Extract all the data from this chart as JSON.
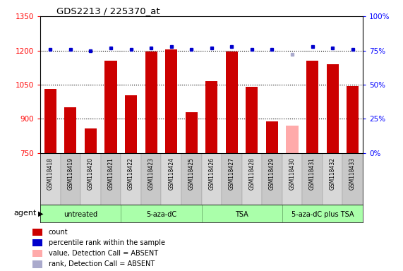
{
  "title": "GDS2213 / 225370_at",
  "samples": [
    "GSM118418",
    "GSM118419",
    "GSM118420",
    "GSM118421",
    "GSM118422",
    "GSM118423",
    "GSM118424",
    "GSM118425",
    "GSM118426",
    "GSM118427",
    "GSM118428",
    "GSM118429",
    "GSM118430",
    "GSM118431",
    "GSM118432",
    "GSM118433"
  ],
  "counts": [
    1030,
    950,
    858,
    1155,
    1005,
    1195,
    1205,
    930,
    1065,
    1195,
    1040,
    890,
    870,
    1155,
    1140,
    1045
  ],
  "count_absent": [
    false,
    false,
    false,
    false,
    false,
    false,
    false,
    false,
    false,
    false,
    false,
    false,
    true,
    false,
    false,
    false
  ],
  "percentile_ranks": [
    76,
    76,
    75,
    77,
    76,
    77,
    78,
    76,
    77,
    78,
    76,
    76,
    72,
    78,
    77,
    76
  ],
  "rank_absent": [
    false,
    false,
    false,
    false,
    false,
    false,
    false,
    false,
    false,
    false,
    false,
    false,
    true,
    false,
    false,
    false
  ],
  "ylim_left": [
    750,
    1350
  ],
  "ylim_right": [
    0,
    100
  ],
  "yticks_left": [
    750,
    900,
    1050,
    1200,
    1350
  ],
  "yticks_right": [
    0,
    25,
    50,
    75,
    100
  ],
  "bar_color": "#cc0000",
  "bar_absent_color": "#ffaaaa",
  "dot_color": "#0000cc",
  "dot_absent_color": "#aaaacc",
  "grid_color": "black",
  "bg_plot": "#ffffff",
  "agent_groups": [
    {
      "label": "untreated",
      "start": 0,
      "end": 3
    },
    {
      "label": "5-aza-dC",
      "start": 4,
      "end": 7
    },
    {
      "label": "TSA",
      "start": 8,
      "end": 11
    },
    {
      "label": "5-aza-dC plus TSA",
      "start": 12,
      "end": 15
    }
  ],
  "agent_label": "agent",
  "legend_items": [
    {
      "label": "count",
      "color": "#cc0000"
    },
    {
      "label": "percentile rank within the sample",
      "color": "#0000cc"
    },
    {
      "label": "value, Detection Call = ABSENT",
      "color": "#ffaaaa"
    },
    {
      "label": "rank, Detection Call = ABSENT",
      "color": "#aaaacc"
    }
  ]
}
